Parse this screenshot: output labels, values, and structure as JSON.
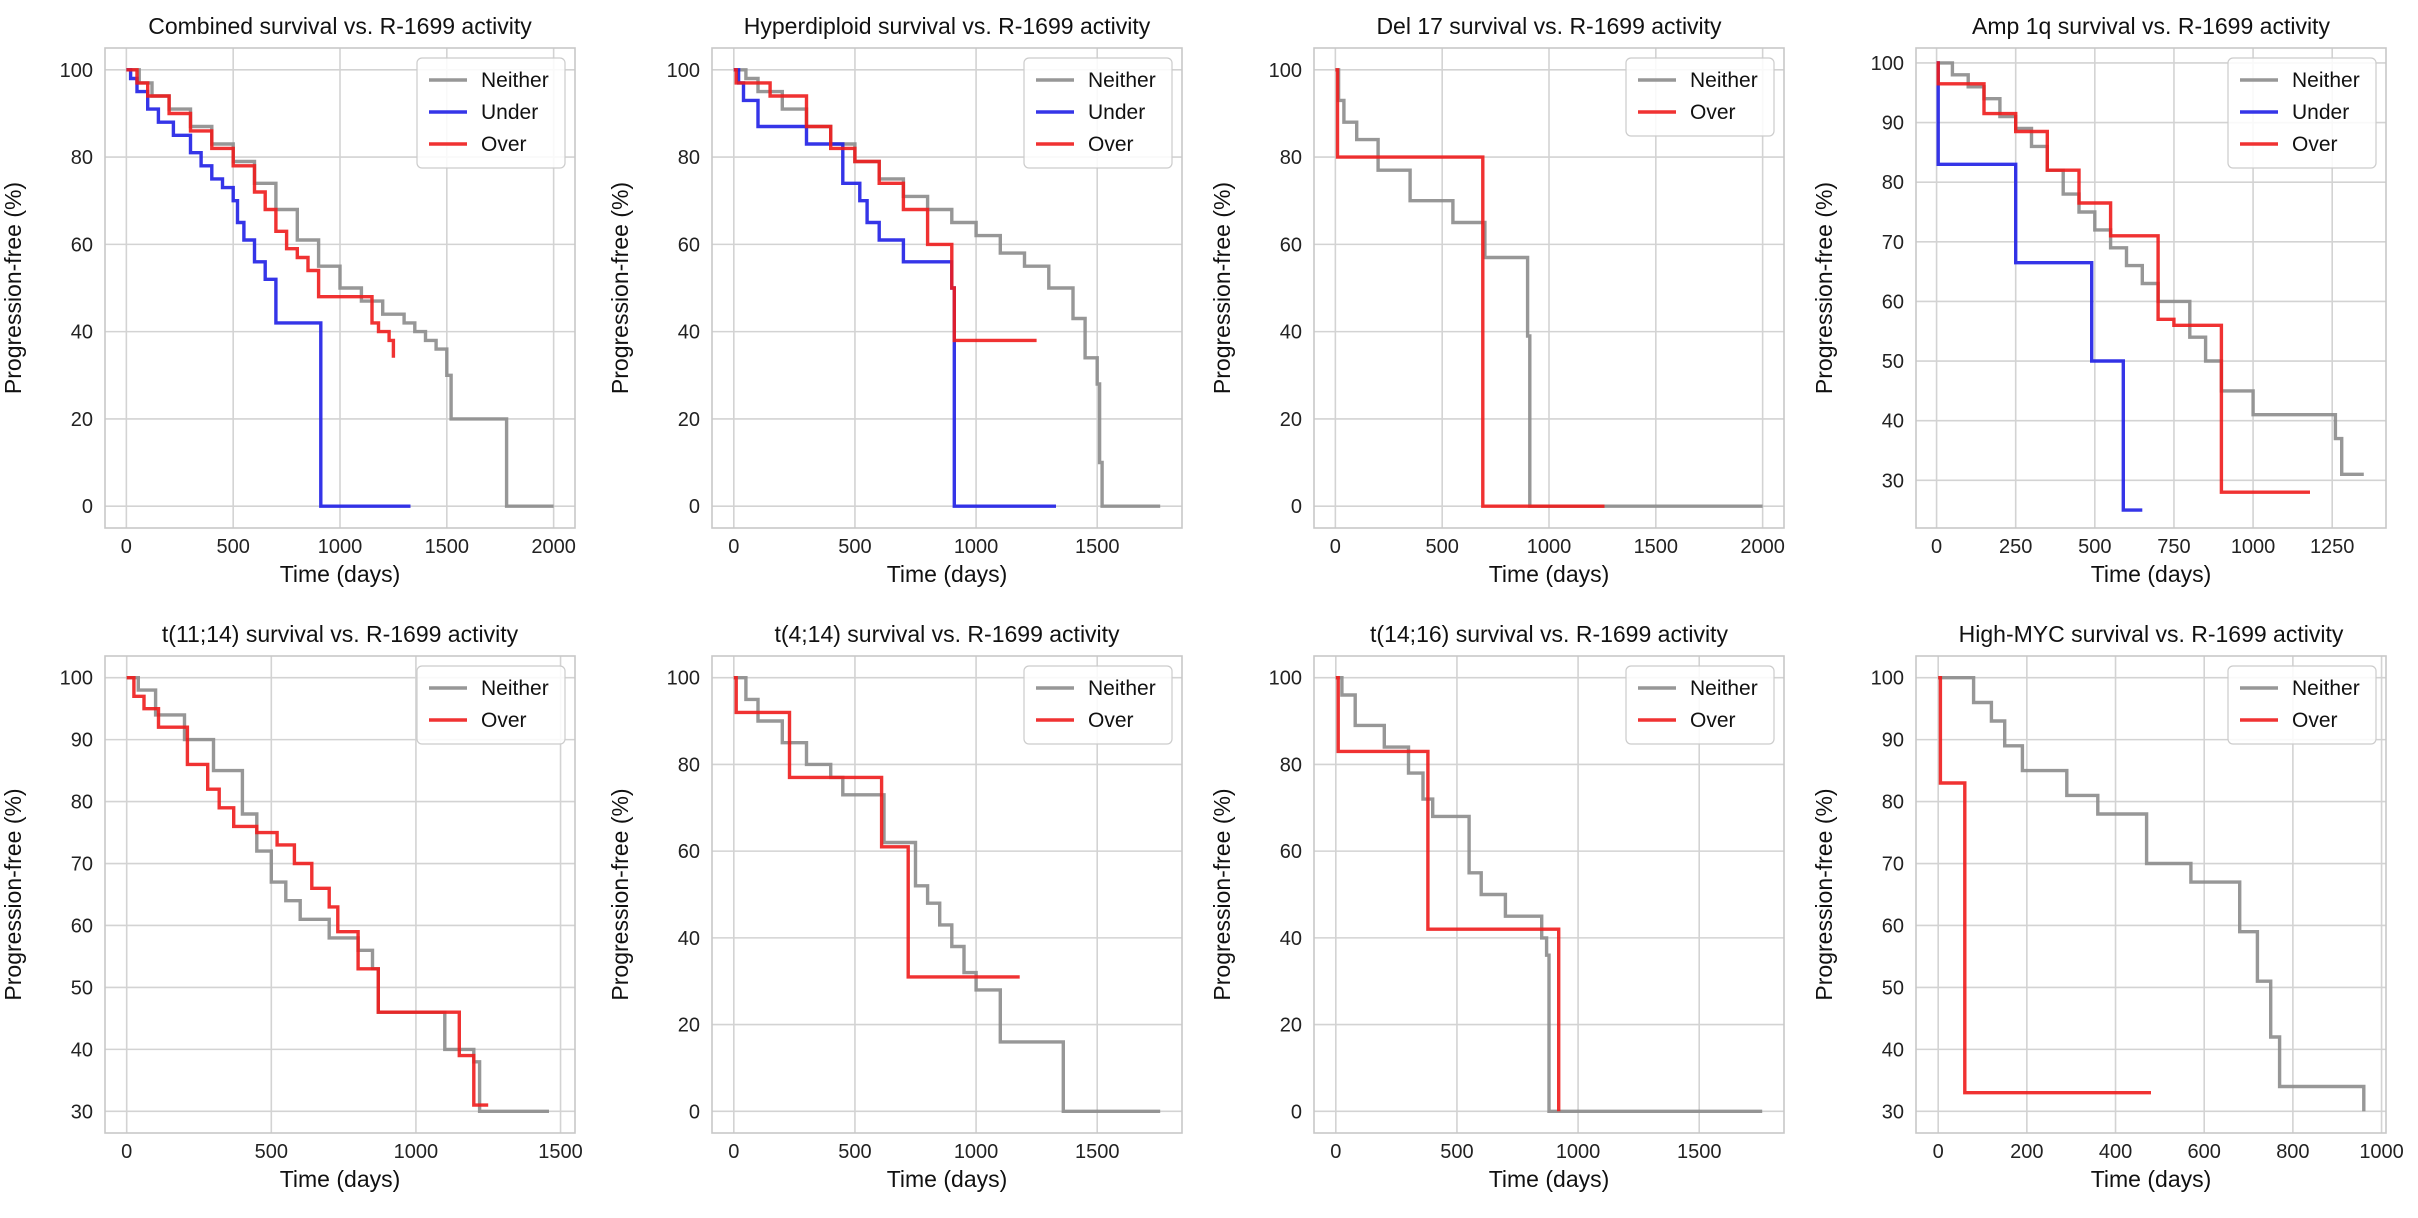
{
  "colors": {
    "Neither": "#8c8c8c",
    "Under": "#1f1fe6",
    "Over": "#ee1c1c",
    "grid": "#d3d3d3",
    "frame": "#c8c8c8"
  },
  "chart_data": [
    {
      "type": "line",
      "step": true,
      "title": "Combined survival vs. R-1699 activity",
      "xlabel": "Time (days)",
      "ylabel": "Progression-free (%)",
      "xlim": [
        -100,
        2100
      ],
      "ylim": [
        -5,
        105
      ],
      "xticks": [
        0,
        500,
        1000,
        1500,
        2000
      ],
      "yticks": [
        0,
        20,
        40,
        60,
        80,
        100
      ],
      "legend": "top-right",
      "series": [
        {
          "name": "Neither",
          "x": [
            0,
            60,
            120,
            200,
            300,
            400,
            500,
            600,
            700,
            800,
            900,
            1000,
            1100,
            1200,
            1300,
            1350,
            1400,
            1450,
            1500,
            1520,
            1760,
            1780,
            2000
          ],
          "y": [
            100,
            97,
            94,
            91,
            87,
            83,
            79,
            74,
            68,
            61,
            55,
            50,
            47,
            44,
            42,
            40,
            38,
            36,
            30,
            20,
            20,
            0,
            0
          ]
        },
        {
          "name": "Under",
          "x": [
            0,
            20,
            50,
            100,
            150,
            220,
            300,
            350,
            400,
            450,
            500,
            520,
            550,
            600,
            650,
            700,
            900,
            910,
            1330
          ],
          "y": [
            100,
            98,
            95,
            91,
            88,
            85,
            81,
            78,
            75,
            73,
            70,
            65,
            61,
            56,
            52,
            42,
            42,
            0,
            0
          ]
        },
        {
          "name": "Over",
          "x": [
            0,
            50,
            100,
            200,
            300,
            400,
            500,
            600,
            650,
            700,
            750,
            800,
            850,
            900,
            1000,
            1150,
            1180,
            1230,
            1250
          ],
          "y": [
            100,
            97,
            94,
            90,
            86,
            82,
            78,
            72,
            68,
            63,
            59,
            57,
            54,
            48,
            48,
            42,
            40,
            38,
            34
          ]
        }
      ]
    },
    {
      "type": "line",
      "step": true,
      "title": "Hyperdiploid survival vs. R-1699 activity",
      "xlabel": "Time (days)",
      "ylabel": "Progression-free (%)",
      "xlim": [
        -90,
        1850
      ],
      "ylim": [
        -5,
        105
      ],
      "xticks": [
        0,
        500,
        1000,
        1500
      ],
      "yticks": [
        0,
        20,
        40,
        60,
        80,
        100
      ],
      "legend": "top-right",
      "series": [
        {
          "name": "Neither",
          "x": [
            0,
            50,
            100,
            200,
            300,
            400,
            500,
            600,
            700,
            800,
            900,
            1000,
            1100,
            1200,
            1300,
            1400,
            1450,
            1500,
            1510,
            1520,
            1760
          ],
          "y": [
            100,
            98,
            95,
            91,
            87,
            83,
            79,
            75,
            71,
            68,
            65,
            62,
            58,
            55,
            50,
            43,
            34,
            28,
            10,
            0,
            0
          ]
        },
        {
          "name": "Under",
          "x": [
            0,
            20,
            40,
            100,
            300,
            450,
            520,
            550,
            600,
            700,
            900,
            910,
            1330
          ],
          "y": [
            100,
            97,
            93,
            87,
            83,
            74,
            70,
            65,
            61,
            56,
            50,
            0,
            0
          ]
        },
        {
          "name": "Over",
          "x": [
            0,
            10,
            150,
            200,
            300,
            400,
            500,
            600,
            700,
            800,
            900,
            910,
            1250
          ],
          "y": [
            100,
            97,
            94,
            94,
            87,
            82,
            79,
            74,
            68,
            60,
            50,
            38,
            38
          ]
        }
      ]
    },
    {
      "type": "line",
      "step": true,
      "title": "Del 17 survival vs. R-1699 activity",
      "xlabel": "Time (days)",
      "ylabel": "Progression-free (%)",
      "xlim": [
        -100,
        2100
      ],
      "ylim": [
        -5,
        105
      ],
      "xticks": [
        0,
        500,
        1000,
        1500,
        2000
      ],
      "yticks": [
        0,
        20,
        40,
        60,
        80,
        100
      ],
      "legend": "top-right",
      "series": [
        {
          "name": "Neither",
          "x": [
            0,
            15,
            40,
            100,
            200,
            350,
            550,
            700,
            900,
            910,
            2000
          ],
          "y": [
            100,
            93,
            88,
            84,
            77,
            70,
            65,
            57,
            39,
            0,
            0
          ]
        },
        {
          "name": "Over",
          "x": [
            0,
            10,
            680,
            690,
            1260
          ],
          "y": [
            100,
            80,
            80,
            0,
            0
          ]
        }
      ]
    },
    {
      "type": "line",
      "step": true,
      "title": "Amp 1q survival vs. R-1699 activity",
      "xlabel": "Time (days)",
      "ylabel": "Progression-free (%)",
      "xlim": [
        -65,
        1420
      ],
      "ylim": [
        22,
        102.5
      ],
      "xticks": [
        0,
        250,
        500,
        750,
        1000,
        1250
      ],
      "yticks": [
        30,
        40,
        50,
        60,
        70,
        80,
        90,
        100
      ],
      "legend": "top-right",
      "series": [
        {
          "name": "Neither",
          "x": [
            0,
            50,
            100,
            150,
            200,
            250,
            300,
            350,
            400,
            450,
            500,
            550,
            600,
            650,
            700,
            800,
            850,
            900,
            1000,
            1100,
            1200,
            1260,
            1280,
            1350
          ],
          "y": [
            100,
            98,
            96,
            94,
            91,
            89,
            86,
            82,
            78,
            75,
            72,
            69,
            66,
            63,
            60,
            54,
            50,
            45,
            41,
            41,
            41,
            37,
            31,
            31
          ]
        },
        {
          "name": "Under",
          "x": [
            0,
            5,
            250,
            490,
            590,
            650
          ],
          "y": [
            100,
            83,
            66.5,
            50,
            25,
            25
          ]
        },
        {
          "name": "Over",
          "x": [
            0,
            5,
            150,
            250,
            350,
            450,
            550,
            700,
            750,
            900,
            1180
          ],
          "y": [
            100,
            96.5,
            91.5,
            88.5,
            82,
            76.5,
            71,
            57,
            56,
            28,
            28
          ]
        }
      ]
    },
    {
      "type": "line",
      "step": true,
      "title": "t(11;14) survival vs. R-1699 activity",
      "xlabel": "Time (days)",
      "ylabel": "Progression-free (%)",
      "xlim": [
        -75,
        1550
      ],
      "ylim": [
        26.5,
        103.5
      ],
      "xticks": [
        0,
        500,
        1000,
        1500
      ],
      "yticks": [
        30,
        40,
        50,
        60,
        70,
        80,
        90,
        100
      ],
      "legend": "top-right",
      "series": [
        {
          "name": "Neither",
          "x": [
            0,
            40,
            100,
            200,
            300,
            400,
            450,
            500,
            550,
            600,
            700,
            800,
            850,
            870,
            1000,
            1100,
            1200,
            1220,
            1460
          ],
          "y": [
            100,
            98,
            94,
            90,
            85,
            78,
            72,
            67,
            64,
            61,
            58,
            56,
            53,
            46,
            46,
            40,
            38,
            30,
            30
          ]
        },
        {
          "name": "Over",
          "x": [
            0,
            25,
            60,
            110,
            210,
            280,
            320,
            370,
            450,
            520,
            580,
            640,
            700,
            730,
            800,
            870,
            1000,
            1070,
            1150,
            1200,
            1250
          ],
          "y": [
            100,
            97,
            95,
            92,
            86,
            82,
            79,
            76,
            75,
            73,
            70,
            66,
            63,
            59,
            53,
            46,
            46,
            46,
            39,
            31,
            31
          ]
        }
      ]
    },
    {
      "type": "line",
      "step": true,
      "title": "t(4;14) survival vs. R-1699 activity",
      "xlabel": "Time (days)",
      "ylabel": "Progression-free (%)",
      "xlim": [
        -90,
        1850
      ],
      "ylim": [
        -5,
        105
      ],
      "xticks": [
        0,
        500,
        1000,
        1500
      ],
      "yticks": [
        0,
        20,
        40,
        60,
        80,
        100
      ],
      "legend": "top-right",
      "series": [
        {
          "name": "Neither",
          "x": [
            0,
            50,
            100,
            200,
            300,
            400,
            450,
            600,
            620,
            700,
            750,
            800,
            850,
            900,
            950,
            1000,
            1100,
            1350,
            1360,
            1760
          ],
          "y": [
            100,
            95,
            90,
            85,
            80,
            77,
            73,
            73,
            62,
            62,
            52,
            48,
            43,
            38,
            32,
            28,
            16,
            16,
            0,
            0
          ]
        },
        {
          "name": "Over",
          "x": [
            0,
            10,
            230,
            610,
            720,
            1180
          ],
          "y": [
            100,
            92,
            77,
            61,
            31,
            31
          ]
        }
      ]
    },
    {
      "type": "line",
      "step": true,
      "title": "t(14;16) survival vs. R-1699 activity",
      "xlabel": "Time (days)",
      "ylabel": "Progression-free (%)",
      "xlim": [
        -90,
        1850
      ],
      "ylim": [
        -5,
        105
      ],
      "xticks": [
        0,
        500,
        1000,
        1500
      ],
      "yticks": [
        0,
        20,
        40,
        60,
        80,
        100
      ],
      "legend": "top-right",
      "series": [
        {
          "name": "Neither",
          "x": [
            0,
            25,
            80,
            200,
            300,
            360,
            400,
            550,
            600,
            700,
            850,
            870,
            880,
            1760
          ],
          "y": [
            100,
            96,
            89,
            84,
            78,
            72,
            68,
            55,
            50,
            45,
            40,
            36,
            0,
            0
          ]
        },
        {
          "name": "Over",
          "x": [
            0,
            10,
            380,
            910,
            920
          ],
          "y": [
            100,
            83,
            42,
            42,
            0
          ]
        }
      ]
    },
    {
      "type": "line",
      "step": true,
      "title": "High-MYC survival vs. R-1699 activity",
      "xlabel": "Time (days)",
      "ylabel": "Progression-free (%)",
      "xlim": [
        -50,
        1010
      ],
      "ylim": [
        26.5,
        103.5
      ],
      "xticks": [
        0,
        200,
        400,
        600,
        800,
        1000
      ],
      "yticks": [
        30,
        40,
        50,
        60,
        70,
        80,
        90,
        100
      ],
      "legend": "top-right",
      "series": [
        {
          "name": "Neither",
          "x": [
            0,
            80,
            120,
            150,
            190,
            290,
            360,
            470,
            570,
            680,
            720,
            750,
            770,
            960
          ],
          "y": [
            100,
            96,
            93,
            89,
            85,
            81,
            78,
            70,
            67,
            59,
            51,
            42,
            34,
            30
          ]
        },
        {
          "name": "Over",
          "x": [
            0,
            5,
            60,
            480
          ],
          "y": [
            100,
            83,
            33,
            33
          ]
        }
      ]
    }
  ]
}
